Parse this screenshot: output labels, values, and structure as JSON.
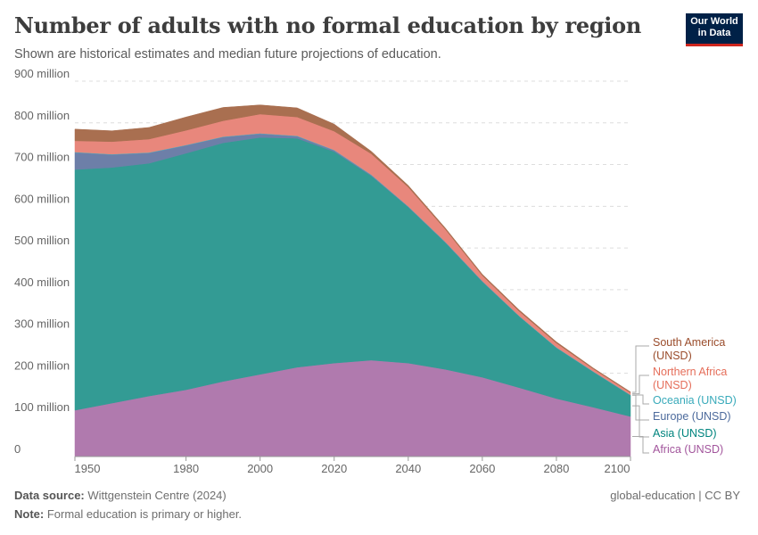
{
  "header": {
    "title": "Number of adults with no formal education by region",
    "subtitle": "Shown are historical estimates and median future projections of education.",
    "logo": "Our World in Data"
  },
  "footer": {
    "source_label": "Data source:",
    "source": "Wittgenstein Centre (2024)",
    "note_label": "Note:",
    "note": "Formal education is primary or higher.",
    "license": "global-education | CC BY"
  },
  "chart_data": {
    "type": "area",
    "stacked": true,
    "title": "Number of adults with no formal education by region",
    "xlabel": "",
    "ylabel": "",
    "xlim": [
      1950,
      2100
    ],
    "ylim": [
      0,
      900000000
    ],
    "y_ticks": [
      {
        "v": 0,
        "label": "0"
      },
      {
        "v": 100,
        "label": "100 million"
      },
      {
        "v": 200,
        "label": "200 million"
      },
      {
        "v": 300,
        "label": "300 million"
      },
      {
        "v": 400,
        "label": "400 million"
      },
      {
        "v": 500,
        "label": "500 million"
      },
      {
        "v": 600,
        "label": "600 million"
      },
      {
        "v": 700,
        "label": "700 million"
      },
      {
        "v": 800,
        "label": "800 million"
      },
      {
        "v": 900,
        "label": "900 million"
      }
    ],
    "x_ticks": [
      1950,
      1980,
      2000,
      2020,
      2040,
      2060,
      2080,
      2100
    ],
    "grid": "horizontal dashed",
    "legend": "right, inline labels",
    "unit": "million",
    "x": [
      1950,
      1960,
      1970,
      1980,
      1990,
      2000,
      2010,
      2020,
      2030,
      2040,
      2050,
      2060,
      2070,
      2080,
      2090,
      2100
    ],
    "series": [
      {
        "name": "Africa (UNSD)",
        "color": "#b07aae",
        "label_color": "#a2559c",
        "values": [
          111,
          128,
          145,
          160,
          180,
          197,
          214,
          224,
          231,
          224,
          209,
          190,
          165,
          139,
          118,
          96
        ]
      },
      {
        "name": "Asia (UNSD)",
        "color": "#339b94",
        "label_color": "#00847e",
        "values": [
          577,
          565,
          558,
          567,
          572,
          568,
          549,
          507,
          442,
          374,
          304,
          229,
          171,
          122,
          85,
          51
        ]
      },
      {
        "name": "Europe (UNSD)",
        "color": "#6d7fa8",
        "label_color": "#4c6a9c",
        "values": [
          41,
          31,
          25,
          19,
          14,
          9,
          5,
          3,
          2,
          1,
          1,
          1,
          0,
          0,
          0,
          0
        ]
      },
      {
        "name": "Oceania (UNSD)",
        "color": "#4fb0c0",
        "label_color": "#38aaba",
        "values": [
          1,
          1,
          1,
          1,
          1,
          1,
          1,
          1,
          1,
          1,
          1,
          1,
          1,
          1,
          1,
          1
        ]
      },
      {
        "name": "Northern Africa (UNSD)",
        "color": "#e8877c",
        "label_color": "#e56e5a",
        "values": [
          27,
          30,
          32,
          35,
          38,
          46,
          45,
          45,
          50,
          46,
          30,
          13,
          11,
          10,
          6,
          5
        ]
      },
      {
        "name": "South America (UNSD)",
        "color": "#a96f50",
        "label_color": "#9a4c2b",
        "values": [
          28,
          26,
          28,
          32,
          32,
          22,
          22,
          17,
          6,
          4,
          3,
          3,
          3,
          3,
          2,
          2
        ]
      }
    ]
  }
}
